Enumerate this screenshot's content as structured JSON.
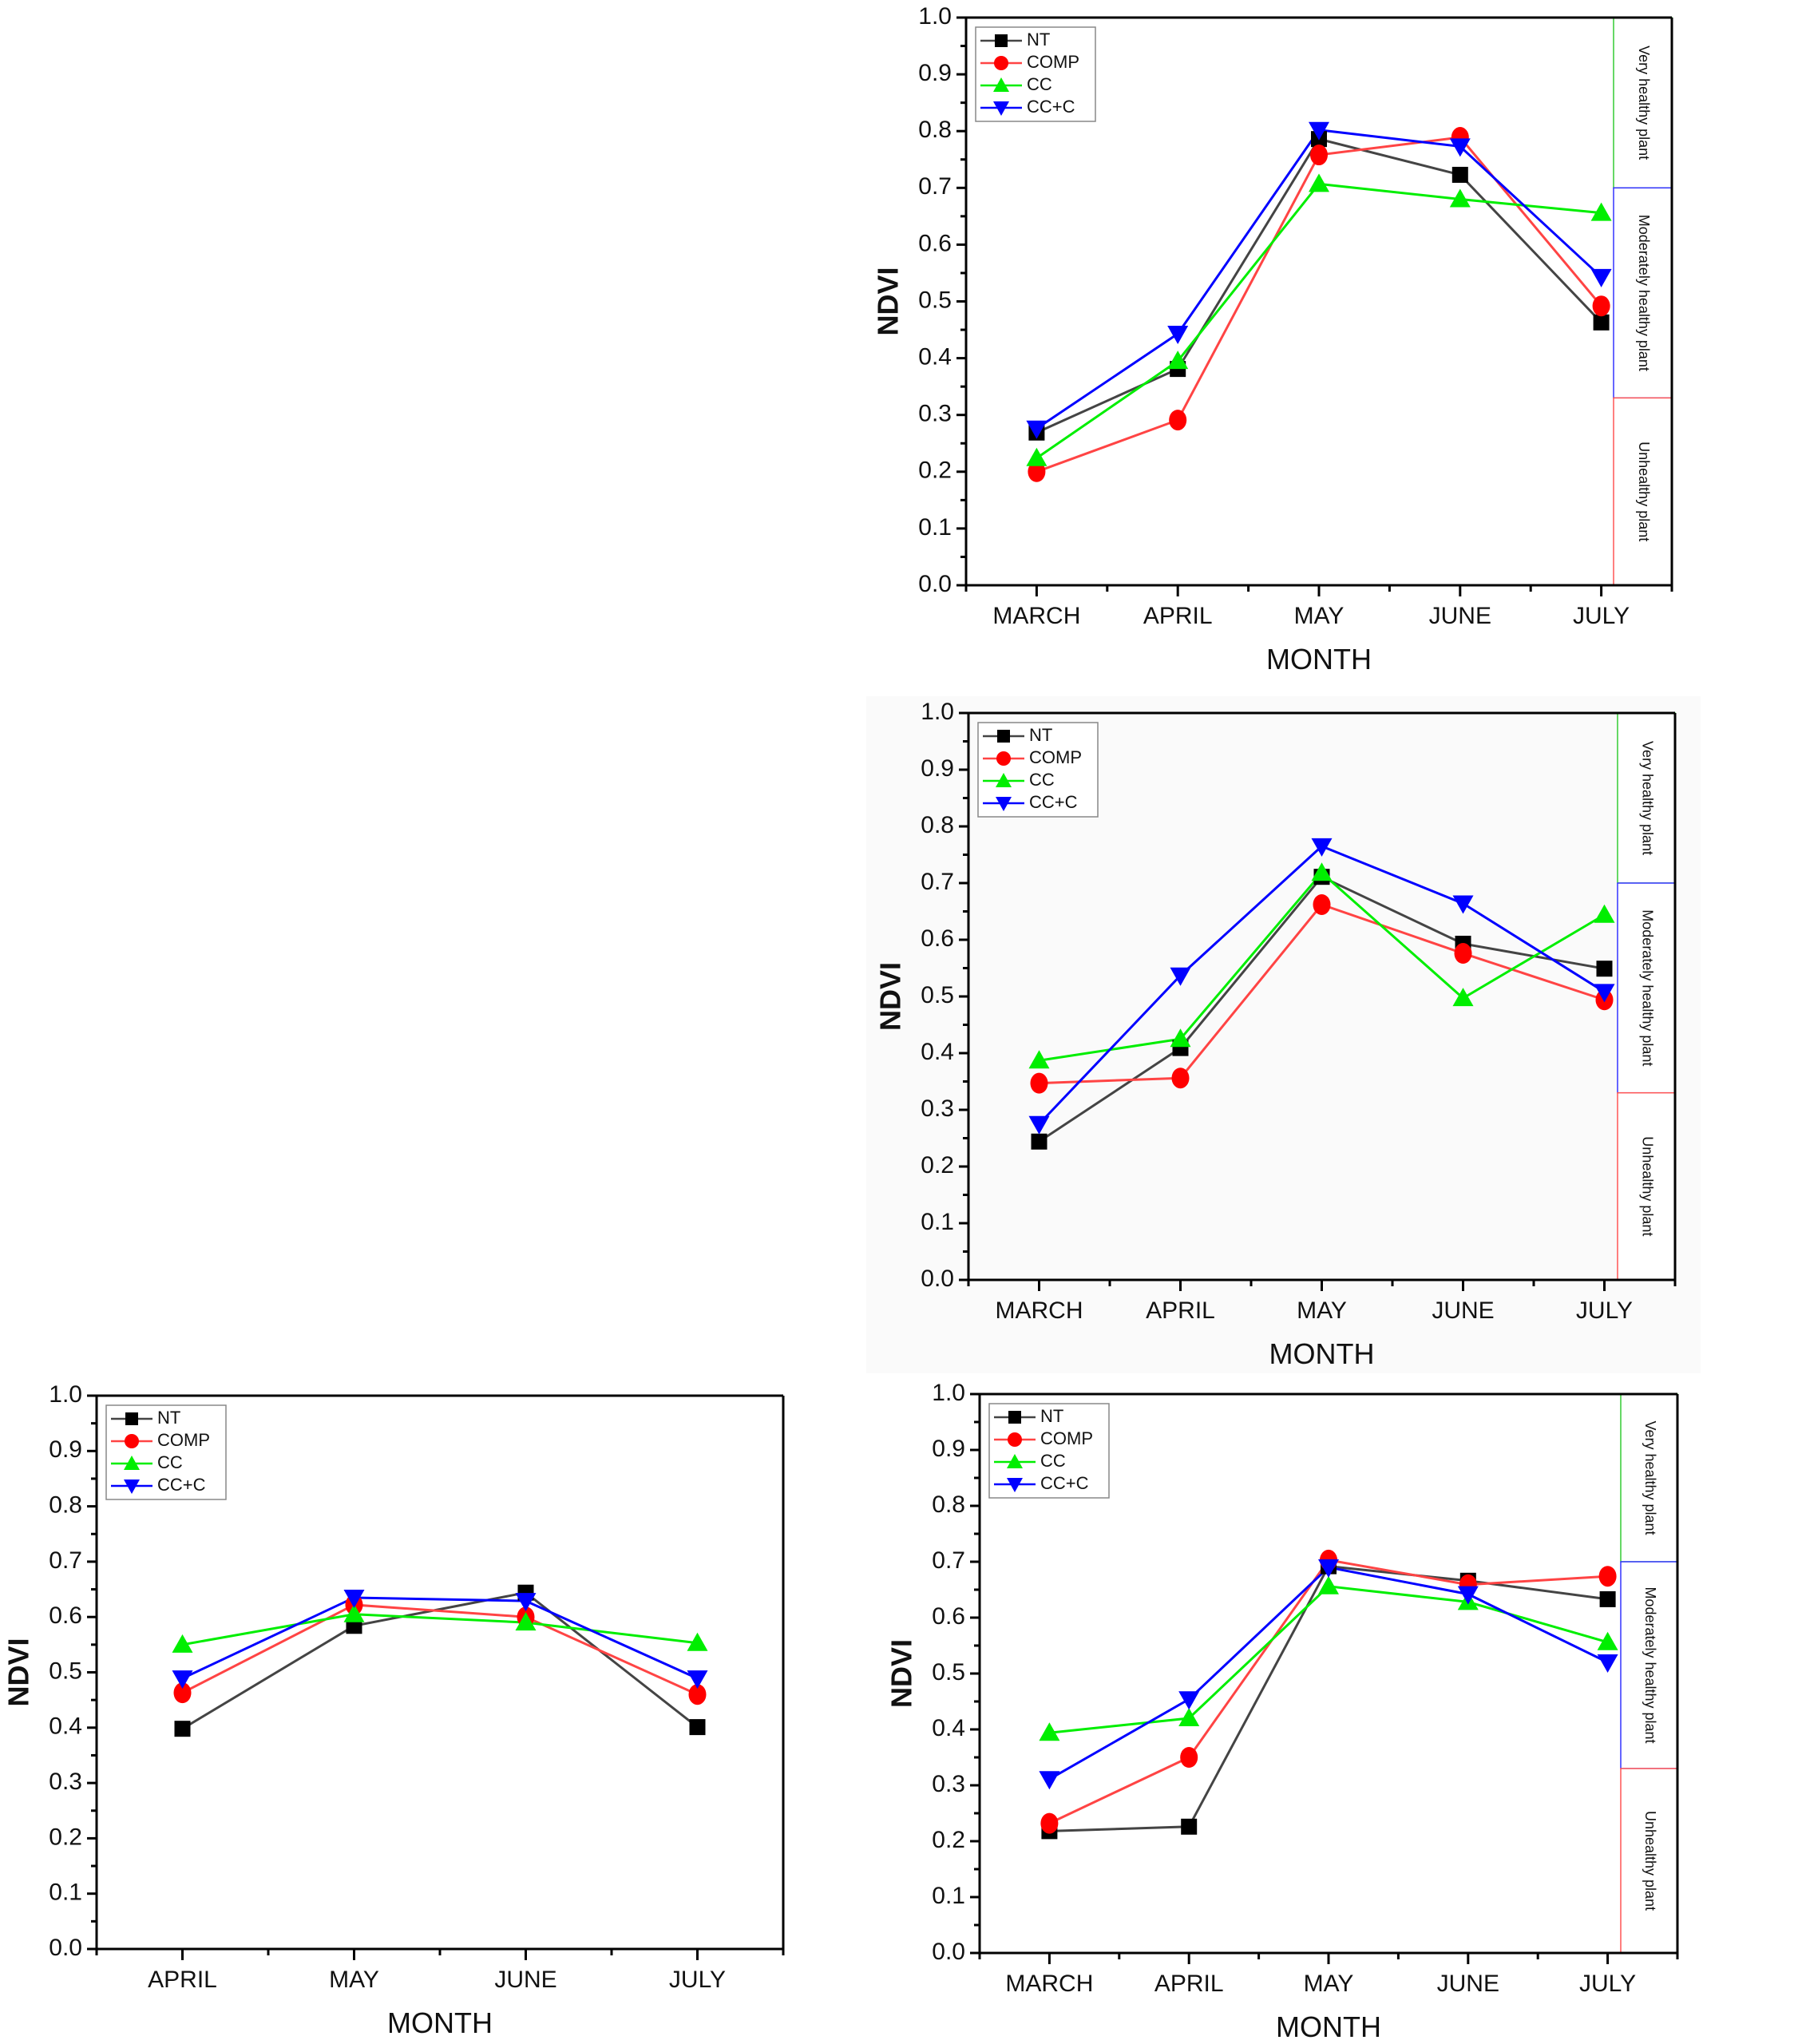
{
  "chart_data": [
    {
      "type": "line",
      "id": "top-right",
      "title": "",
      "xlabel": "MONTH",
      "ylabel": "NDVI",
      "categories": [
        "MARCH",
        "APRIL",
        "MAY",
        "JUNE",
        "JULY"
      ],
      "ylim": [
        0.0,
        1.0
      ],
      "yticks": [
        "0.0",
        "0.1",
        "0.2",
        "0.3",
        "0.4",
        "0.5",
        "0.6",
        "0.7",
        "0.8",
        "0.9",
        "1.0"
      ],
      "grid": false,
      "legend_position": "top-left",
      "series": [
        {
          "name": "NT",
          "color": "#000000",
          "line_color": "#444444",
          "marker": "square",
          "values": [
            0.269,
            0.381,
            0.786,
            0.723,
            0.463
          ]
        },
        {
          "name": "COMP",
          "color": "#ff0000",
          "line_color": "#ff4444",
          "marker": "circle",
          "values": [
            0.2,
            0.291,
            0.758,
            0.789,
            0.492
          ]
        },
        {
          "name": "CC",
          "color": "#00ee00",
          "line_color": "#00ee00",
          "marker": "triangle-up",
          "values": [
            0.224,
            0.395,
            0.707,
            0.68,
            0.656
          ]
        },
        {
          "name": "CC+C",
          "color": "#0000ff",
          "line_color": "#0000ff",
          "marker": "triangle-down",
          "values": [
            0.276,
            0.443,
            0.802,
            0.773,
            0.543
          ]
        }
      ],
      "bands": [
        {
          "label": "Very healthy plant",
          "from": 0.7,
          "to": 1.0,
          "color": "#33cc33"
        },
        {
          "label": "Moderately healthy plant",
          "from": 0.33,
          "to": 0.7,
          "color": "#3333ff"
        },
        {
          "label": "Unhealthy plant",
          "from": 0.0,
          "to": 0.33,
          "color": "#ff5555"
        }
      ]
    },
    {
      "type": "line",
      "id": "middle-right",
      "title": "",
      "xlabel": "MONTH",
      "ylabel": "NDVI",
      "categories": [
        "MARCH",
        "APRIL",
        "MAY",
        "JUNE",
        "JULY"
      ],
      "ylim": [
        0.0,
        1.0
      ],
      "yticks": [
        "0.0",
        "0.1",
        "0.2",
        "0.3",
        "0.4",
        "0.5",
        "0.6",
        "0.7",
        "0.8",
        "0.9",
        "1.0"
      ],
      "grid": false,
      "legend_position": "top-left",
      "series": [
        {
          "name": "NT",
          "color": "#000000",
          "line_color": "#444444",
          "marker": "square",
          "values": [
            0.244,
            0.409,
            0.711,
            0.593,
            0.549
          ]
        },
        {
          "name": "COMP",
          "color": "#ff0000",
          "line_color": "#ff4444",
          "marker": "circle",
          "values": [
            0.347,
            0.356,
            0.662,
            0.576,
            0.494
          ]
        },
        {
          "name": "CC",
          "color": "#00ee00",
          "line_color": "#00ee00",
          "marker": "triangle-up",
          "values": [
            0.387,
            0.425,
            0.718,
            0.497,
            0.644
          ]
        },
        {
          "name": "CC+C",
          "color": "#0000ff",
          "line_color": "#0000ff",
          "marker": "triangle-down",
          "values": [
            0.275,
            0.537,
            0.765,
            0.664,
            0.508
          ]
        }
      ],
      "bands": [
        {
          "label": "Very healthy plant",
          "from": 0.7,
          "to": 1.0,
          "color": "#33cc33"
        },
        {
          "label": "Moderately healthy plant",
          "from": 0.33,
          "to": 0.7,
          "color": "#3333ff"
        },
        {
          "label": "Unhealthy plant",
          "from": 0.0,
          "to": 0.33,
          "color": "#ff5555"
        }
      ]
    },
    {
      "type": "line",
      "id": "bottom-left",
      "title": "",
      "xlabel": "MONTH",
      "ylabel": "NDVI",
      "categories": [
        "APRIL",
        "MAY",
        "JUNE",
        "JULY"
      ],
      "ylim": [
        0.0,
        1.0
      ],
      "yticks": [
        "0.0",
        "0.1",
        "0.2",
        "0.3",
        "0.4",
        "0.5",
        "0.6",
        "0.7",
        "0.8",
        "0.9",
        "1.0"
      ],
      "grid": false,
      "legend_position": "top-left",
      "series": [
        {
          "name": "NT",
          "color": "#000000",
          "line_color": "#444444",
          "marker": "square",
          "values": [
            0.398,
            0.584,
            0.644,
            0.401
          ]
        },
        {
          "name": "COMP",
          "color": "#ff0000",
          "line_color": "#ff4444",
          "marker": "circle",
          "values": [
            0.463,
            0.622,
            0.6,
            0.46
          ]
        },
        {
          "name": "CC",
          "color": "#00ee00",
          "line_color": "#00ee00",
          "marker": "triangle-up",
          "values": [
            0.55,
            0.605,
            0.59,
            0.553
          ]
        },
        {
          "name": "CC+C",
          "color": "#0000ff",
          "line_color": "#0000ff",
          "marker": "triangle-down",
          "values": [
            0.489,
            0.635,
            0.629,
            0.489
          ]
        }
      ],
      "bands": []
    },
    {
      "type": "line",
      "id": "bottom-right",
      "title": "",
      "xlabel": "MONTH",
      "ylabel": "NDVI",
      "categories": [
        "MARCH",
        "APRIL",
        "MAY",
        "JUNE",
        "JULY"
      ],
      "ylim": [
        0.0,
        1.0
      ],
      "yticks": [
        "0.0",
        "0.1",
        "0.2",
        "0.3",
        "0.4",
        "0.5",
        "0.6",
        "0.7",
        "0.8",
        "0.9",
        "1.0"
      ],
      "grid": false,
      "legend_position": "top-left",
      "series": [
        {
          "name": "NT",
          "color": "#000000",
          "line_color": "#444444",
          "marker": "square",
          "values": [
            0.218,
            0.226,
            0.692,
            0.666,
            0.633
          ]
        },
        {
          "name": "COMP",
          "color": "#ff0000",
          "line_color": "#ff4444",
          "marker": "circle",
          "values": [
            0.232,
            0.35,
            0.703,
            0.659,
            0.674
          ]
        },
        {
          "name": "CC",
          "color": "#00ee00",
          "line_color": "#00ee00",
          "marker": "triangle-up",
          "values": [
            0.394,
            0.42,
            0.656,
            0.628,
            0.556
          ]
        },
        {
          "name": "CC+C",
          "color": "#0000ff",
          "line_color": "#0000ff",
          "marker": "triangle-down",
          "values": [
            0.311,
            0.454,
            0.69,
            0.642,
            0.52
          ]
        }
      ],
      "bands": [
        {
          "label": "Very healthy plant",
          "from": 0.7,
          "to": 1.0,
          "color": "#33cc33"
        },
        {
          "label": "Moderately healthy plant",
          "from": 0.33,
          "to": 0.7,
          "color": "#3333ff"
        },
        {
          "label": "Unhealthy plant",
          "from": 0.0,
          "to": 0.33,
          "color": "#ff5555"
        }
      ]
    }
  ]
}
